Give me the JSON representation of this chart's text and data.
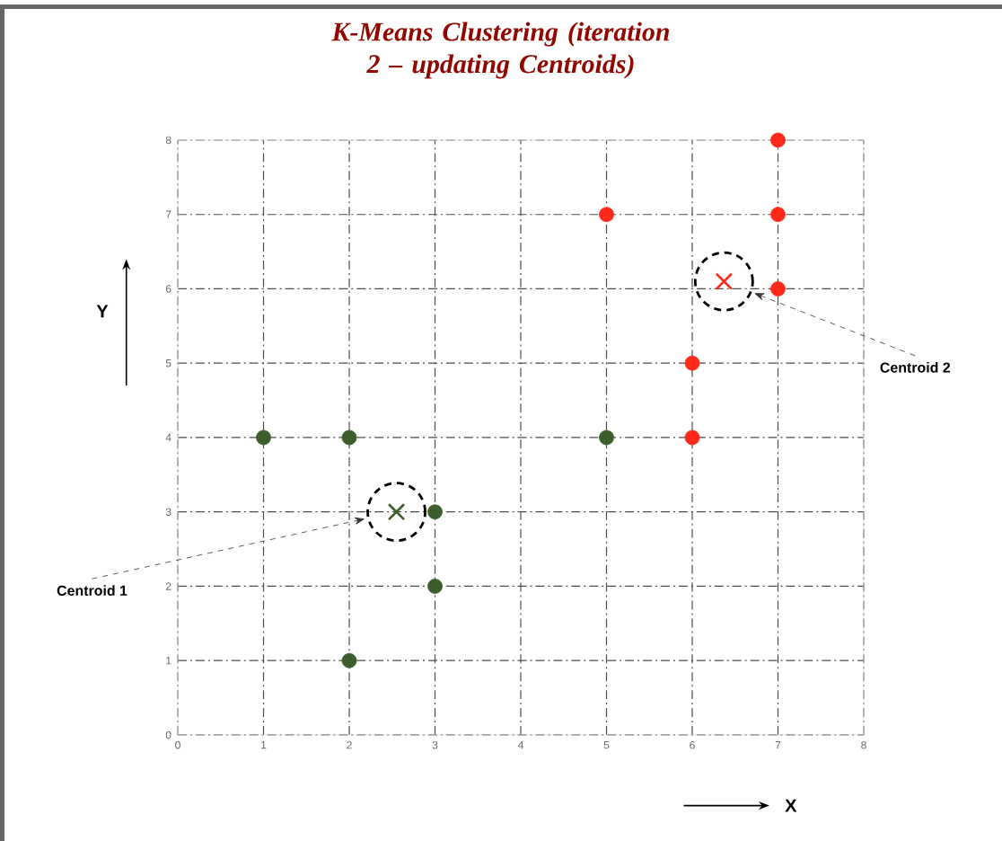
{
  "chart_data": {
    "type": "scatter",
    "title": "K-Means Clustering (iteration 2 – updating Centroids)",
    "xlabel": "X",
    "ylabel": "Y",
    "xlim": [
      0,
      8
    ],
    "ylim": [
      0,
      8
    ],
    "xticks": [
      0,
      1,
      2,
      3,
      4,
      5,
      6,
      7,
      8
    ],
    "yticks": [
      0,
      1,
      2,
      3,
      4,
      5,
      6,
      7,
      8
    ],
    "grid": true,
    "series": [
      {
        "color": "#3b5e2b",
        "marker": "circle",
        "x": [
          1,
          2,
          3,
          3,
          2,
          5
        ],
        "values": [
          4,
          4,
          3,
          2,
          1,
          4
        ]
      },
      {
        "color": "#ff2a1a",
        "marker": "circle",
        "x": [
          5,
          7,
          7,
          7,
          6,
          6
        ],
        "values": [
          7,
          8,
          7,
          6,
          5,
          4
        ]
      },
      {
        "color": "#3b5e2b",
        "marker": "cross",
        "x": [
          2.55
        ],
        "values": [
          3.0
        ]
      },
      {
        "color": "#ff2a1a",
        "marker": "cross",
        "x": [
          6.37
        ],
        "values": [
          6.1
        ]
      }
    ],
    "annotations": [
      "Centroid 1",
      "Centroid 2"
    ]
  }
}
